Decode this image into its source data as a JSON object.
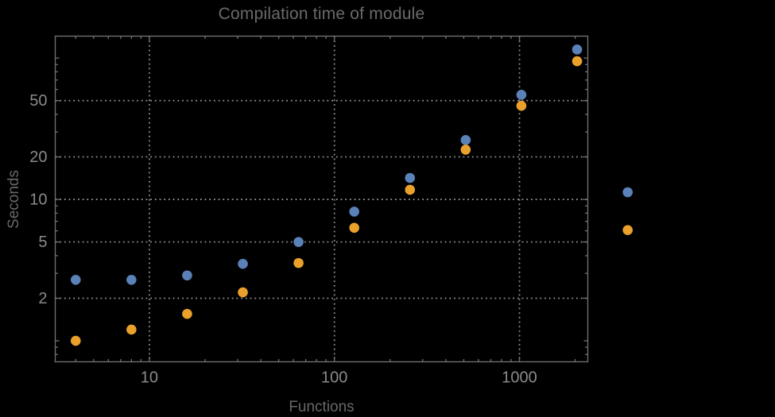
{
  "chart_data": {
    "type": "scatter",
    "title": "Compilation time of module",
    "xlabel": "Functions",
    "ylabel": "Seconds",
    "x_scale": "log",
    "y_scale": "log",
    "xlim": [
      3.1,
      2340
    ],
    "ylim": [
      0.71,
      143
    ],
    "x_ticks": [
      10,
      100,
      1000
    ],
    "y_ticks": [
      2,
      5,
      10,
      20,
      50
    ],
    "grid": "dotted",
    "x": [
      4,
      8,
      16,
      32,
      64,
      128,
      256,
      512,
      1024,
      2048
    ],
    "series": [
      {
        "name": "blue",
        "color": "#5a81b8",
        "values": [
          2.7,
          2.7,
          2.9,
          3.5,
          5.0,
          8.2,
          14.2,
          26.3,
          55,
          115
        ]
      },
      {
        "name": "orange",
        "color": "#e9a12b",
        "values": [
          1.0,
          1.2,
          1.55,
          2.2,
          3.55,
          6.3,
          11.7,
          22.5,
          46,
          95
        ]
      }
    ],
    "legend": {
      "labels_visible": false,
      "marker_series": [
        "blue",
        "orange"
      ]
    }
  },
  "colors": {
    "background": "#000000",
    "frame": "#6f6f6f",
    "grid": "#8f8f8f",
    "tick_label": "#8a8a8a",
    "title": "#6a6a6a",
    "axis_label": "#676767"
  }
}
